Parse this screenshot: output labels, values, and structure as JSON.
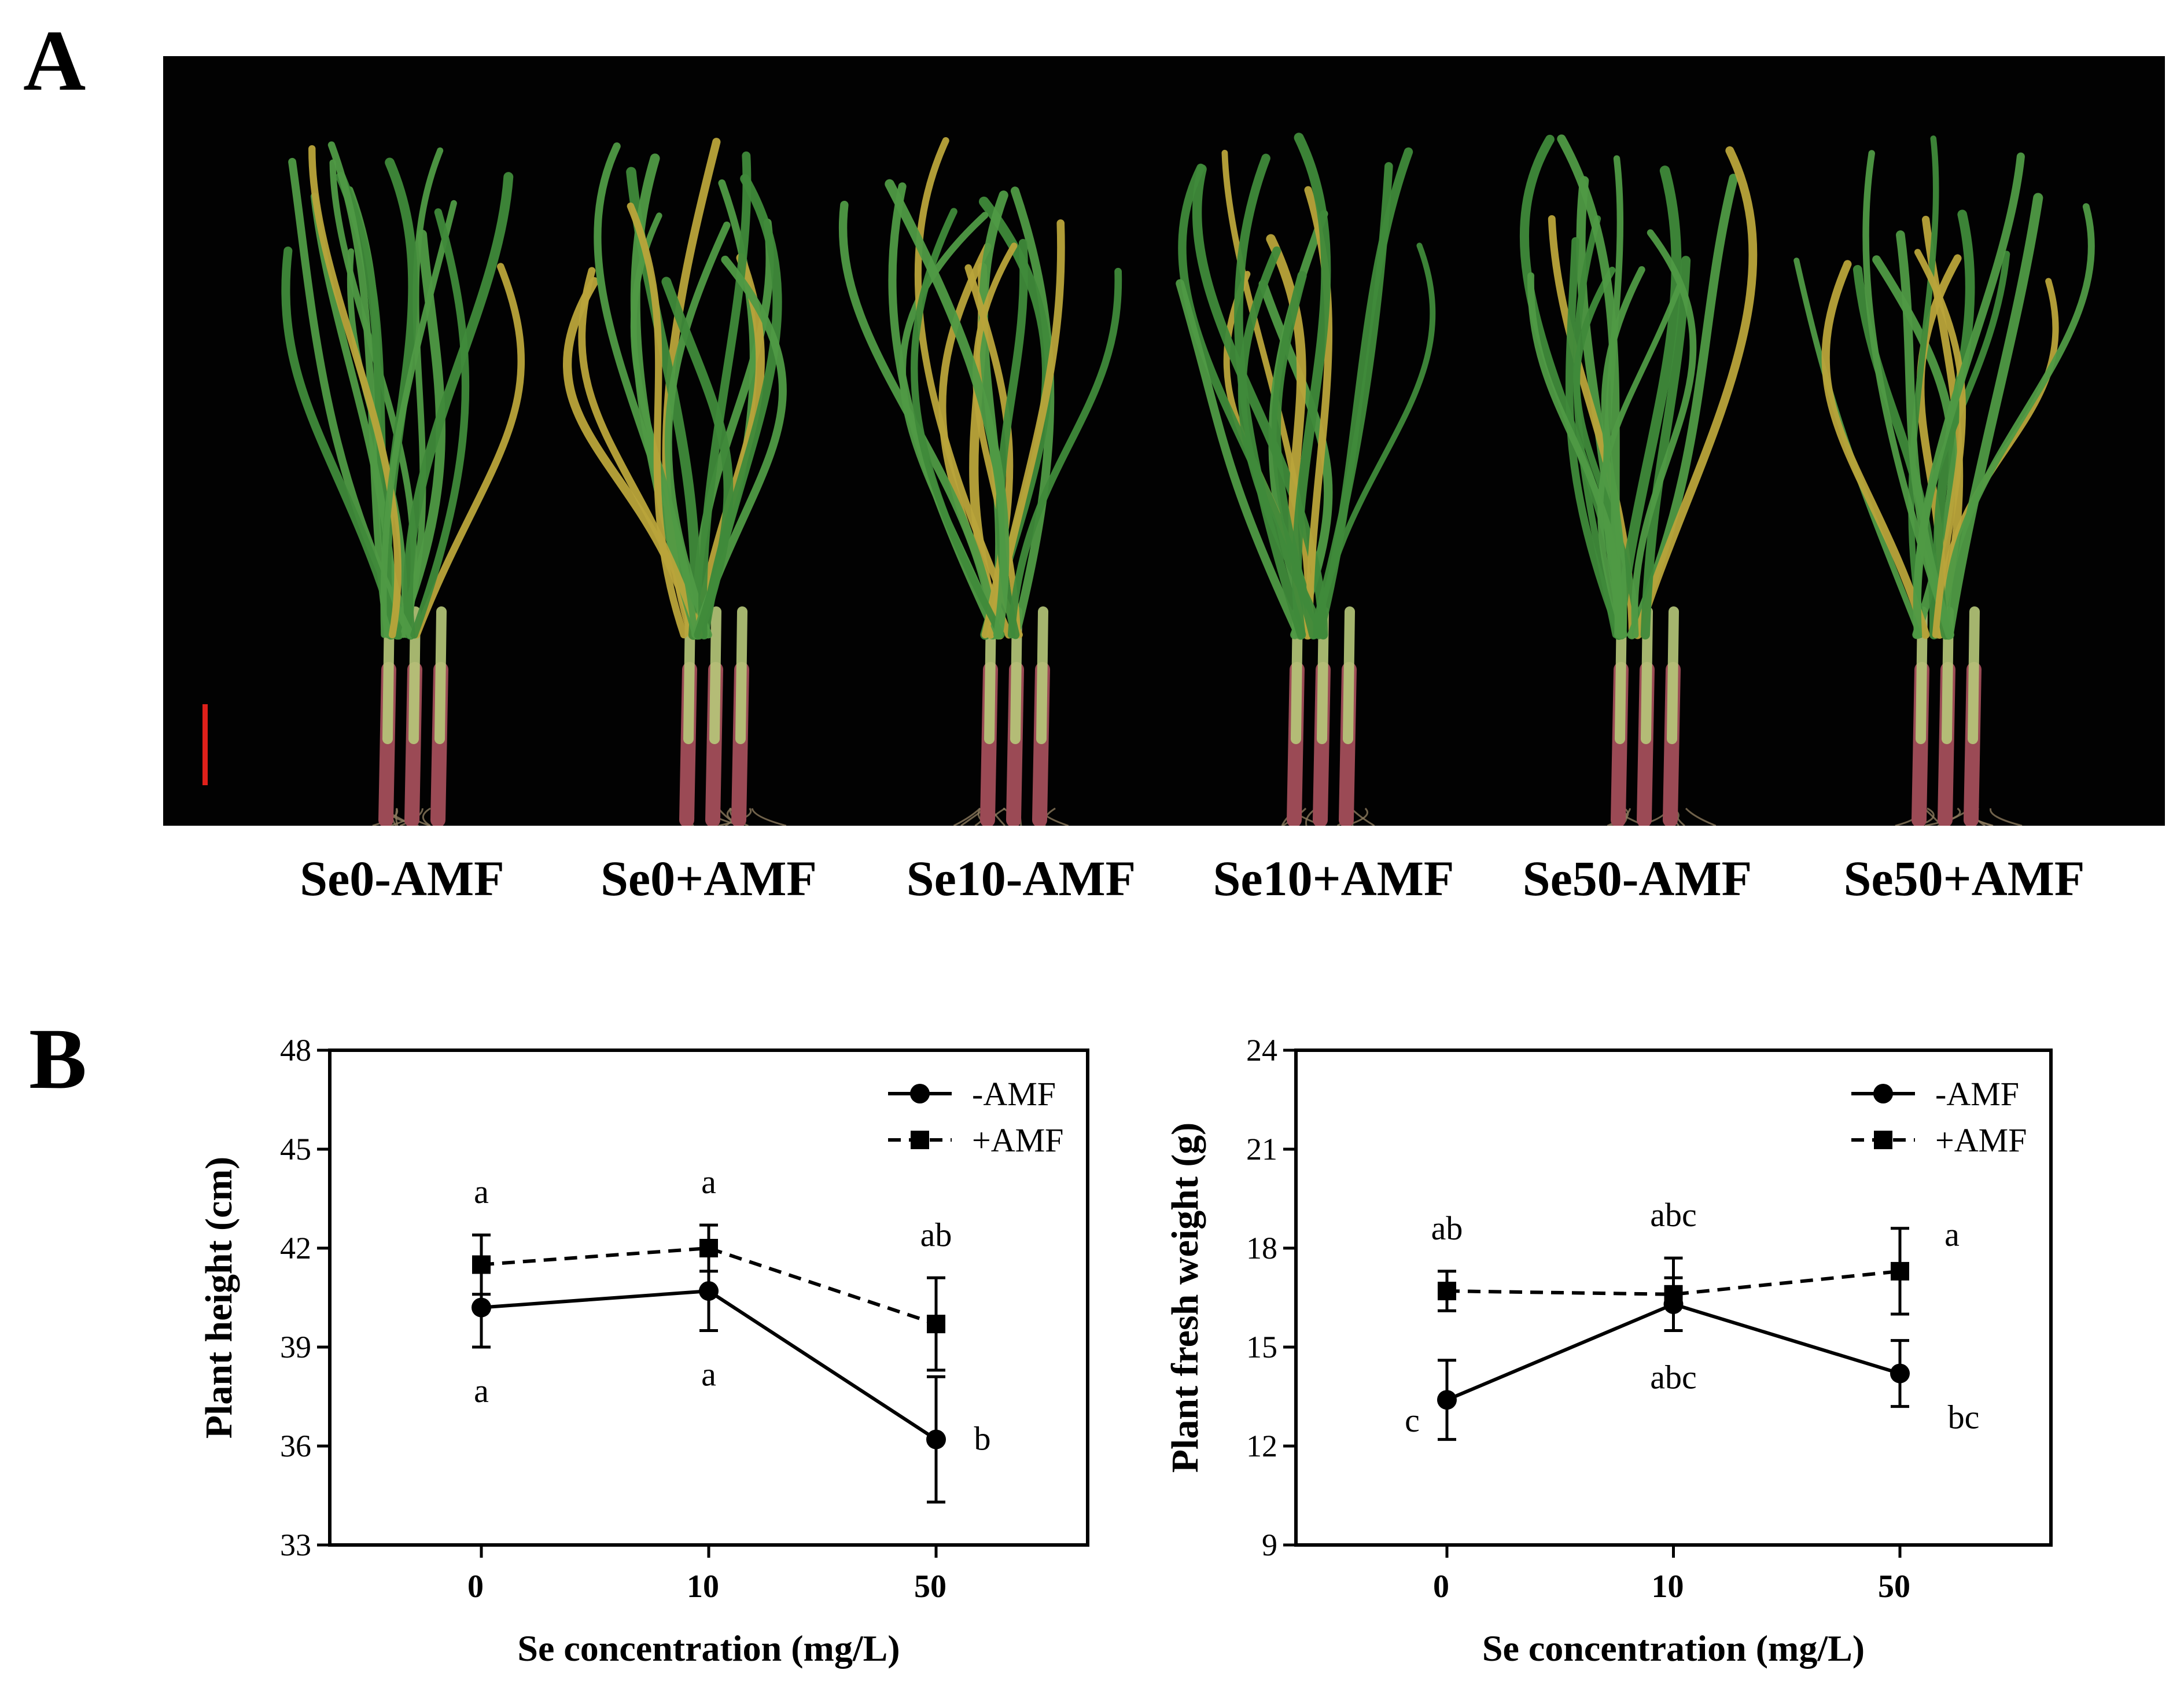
{
  "panel_labels": {
    "a": "A",
    "b": "B"
  },
  "photo": {
    "description_icon": "onion-seedlings-photo",
    "treatments": [
      "Se0-AMF",
      "Se0+AMF",
      "Se10-AMF",
      "Se10+AMF",
      "Se50-AMF",
      "Se50+AMF"
    ],
    "scale_bar_color": "#e0201a"
  },
  "colors": {
    "ink": "#000000",
    "background": "#ffffff",
    "photo_bg": "#020202",
    "leaf_green": "#3f8a3a",
    "leaf_yellow": "#b9a43a",
    "stem_red": "#9b4a55"
  },
  "chart_data": [
    {
      "type": "line",
      "title": "",
      "xlabel": "Se concentration  (mg/L)",
      "ylabel": "Plant height (cm)",
      "categories": [
        "0",
        "10",
        "50"
      ],
      "ylim": [
        33,
        48
      ],
      "yticks": [
        "33",
        "36",
        "39",
        "42",
        "45",
        "48"
      ],
      "legend_position": "top-right",
      "series": [
        {
          "name": "-AMF",
          "marker": "circle",
          "line": "solid",
          "values": [
            40.2,
            40.7,
            36.2
          ],
          "errors": [
            1.2,
            1.2,
            1.9
          ],
          "letters": [
            "a",
            "a",
            "b"
          ]
        },
        {
          "name": "+AMF",
          "marker": "square",
          "line": "dashed",
          "values": [
            41.5,
            42.0,
            39.7
          ],
          "errors": [
            0.9,
            0.7,
            1.4
          ],
          "letters": [
            "a",
            "a",
            "ab"
          ]
        }
      ]
    },
    {
      "type": "line",
      "title": "",
      "xlabel": "Se concentration  (mg/L)",
      "ylabel": "Plant fresh weight (g)",
      "categories": [
        "0",
        "10",
        "50"
      ],
      "ylim": [
        9,
        24
      ],
      "yticks": [
        "9",
        "12",
        "15",
        "18",
        "21",
        "24"
      ],
      "legend_position": "top-right",
      "series": [
        {
          "name": "-AMF",
          "marker": "circle",
          "line": "solid",
          "values": [
            13.4,
            16.3,
            14.2
          ],
          "errors": [
            1.2,
            0.8,
            1.0
          ],
          "letters": [
            "c",
            "abc",
            "bc"
          ]
        },
        {
          "name": "+AMF",
          "marker": "square",
          "line": "dashed",
          "values": [
            16.7,
            16.6,
            17.3
          ],
          "errors": [
            0.6,
            1.1,
            1.3
          ],
          "letters": [
            "ab",
            "abc",
            "a"
          ]
        }
      ]
    }
  ]
}
